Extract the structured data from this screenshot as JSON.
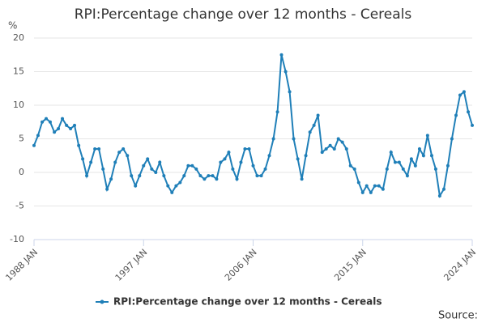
{
  "chart_data": {
    "type": "line",
    "title": "RPI:Percentage change over 12 months - Cereals",
    "y_unit": "%",
    "source": "Source:",
    "x": [
      1988,
      1988.33,
      1988.67,
      1989,
      1989.33,
      1989.67,
      1990,
      1990.33,
      1990.67,
      1991,
      1991.33,
      1991.67,
      1992,
      1992.33,
      1992.67,
      1993,
      1993.33,
      1993.67,
      1994,
      1994.33,
      1994.67,
      1995,
      1995.33,
      1995.67,
      1996,
      1996.33,
      1996.67,
      1997,
      1997.33,
      1997.67,
      1998,
      1998.33,
      1998.67,
      1999,
      1999.33,
      1999.67,
      2000,
      2000.33,
      2000.67,
      2001,
      2001.33,
      2001.67,
      2002,
      2002.33,
      2002.67,
      2003,
      2003.33,
      2003.67,
      2004,
      2004.33,
      2004.67,
      2005,
      2005.33,
      2005.67,
      2006,
      2006.33,
      2006.67,
      2007,
      2007.33,
      2007.67,
      2008,
      2008.33,
      2008.67,
      2009,
      2009.33,
      2009.67,
      2010,
      2010.33,
      2010.67,
      2011,
      2011.33,
      2011.67,
      2012,
      2012.33,
      2012.67,
      2013,
      2013.33,
      2013.67,
      2014,
      2014.33,
      2014.67,
      2015,
      2015.33,
      2015.67,
      2016,
      2016.33,
      2016.67,
      2017,
      2017.33,
      2017.67,
      2018,
      2018.33,
      2018.67,
      2019,
      2019.33,
      2019.67,
      2020,
      2020.33,
      2020.67,
      2021,
      2021.33,
      2021.67,
      2022,
      2022.33,
      2022.67,
      2023,
      2023.33,
      2023.67,
      2024
    ],
    "series": [
      {
        "name": "RPI:Percentage change over 12 months - Cereals",
        "color": "#1f7fb8",
        "values": [
          4.0,
          5.5,
          7.5,
          8.0,
          7.5,
          6.0,
          6.5,
          8.0,
          7.0,
          6.5,
          7.0,
          4.0,
          2.0,
          -0.5,
          1.5,
          3.5,
          3.5,
          0.5,
          -2.5,
          -1.0,
          1.5,
          3.0,
          3.5,
          2.5,
          -0.5,
          -2.0,
          -0.5,
          1.0,
          2.0,
          0.5,
          0.0,
          1.5,
          -0.5,
          -2.0,
          -3.0,
          -2.0,
          -1.5,
          -0.5,
          1.0,
          1.0,
          0.5,
          -0.5,
          -1.0,
          -0.5,
          -0.5,
          -1.0,
          1.5,
          2.0,
          3.0,
          0.5,
          -1.0,
          1.5,
          3.5,
          3.5,
          1.0,
          -0.5,
          -0.5,
          0.5,
          2.5,
          5.0,
          9.0,
          17.5,
          15.0,
          12.0,
          5.0,
          2.0,
          -1.0,
          2.5,
          6.0,
          7.0,
          8.5,
          3.0,
          3.5,
          4.0,
          3.5,
          5.0,
          4.5,
          3.5,
          1.0,
          0.5,
          -1.5,
          -3.0,
          -2.0,
          -3.0,
          -2.0,
          -2.0,
          -2.5,
          0.5,
          3.0,
          1.5,
          1.5,
          0.5,
          -0.5,
          2.0,
          1.0,
          3.5,
          2.5,
          5.5,
          2.5,
          0.5,
          -3.5,
          -2.5,
          1.0,
          5.0,
          8.5,
          11.5,
          12.0,
          9.0,
          7.0
        ]
      }
    ],
    "xlim": [
      1988,
      2024
    ],
    "xticks": [
      {
        "value": 1988,
        "label": "1988 JAN"
      },
      {
        "value": 1997,
        "label": "1997 JAN"
      },
      {
        "value": 2006,
        "label": "2006 JAN"
      },
      {
        "value": 2015,
        "label": "2015 JAN"
      },
      {
        "value": 2024,
        "label": "2024 JAN"
      }
    ],
    "ylim": [
      -10,
      20
    ],
    "yticks": [
      -10,
      -5,
      0,
      5,
      10,
      15,
      20
    ],
    "grid": true
  }
}
